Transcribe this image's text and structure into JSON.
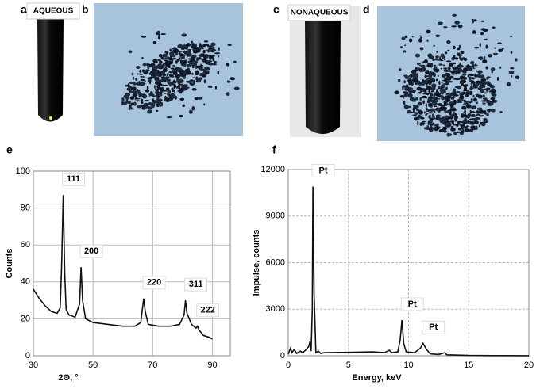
{
  "photos": [
    {
      "panel": "a",
      "tag": "AQUEOUS"
    },
    {
      "panel": "b"
    },
    {
      "panel": "c",
      "tag": "NONAQUEOUS"
    },
    {
      "panel": "d"
    }
  ],
  "chart_data": [
    {
      "type": "line",
      "panel": "e",
      "xlabel": "2Θ, °",
      "ylabel": "Counts",
      "xlim": [
        30,
        96
      ],
      "xticks": [
        30,
        50,
        70,
        90
      ],
      "ylim": [
        0,
        100
      ],
      "yticks": [
        0,
        20,
        40,
        60,
        80,
        100
      ],
      "grid": true,
      "color": "#111111",
      "x": [
        30,
        32,
        34,
        36,
        38,
        39,
        39.5,
        40,
        40.5,
        41,
        42,
        44,
        45.5,
        46,
        46.5,
        47.5,
        50,
        55,
        60,
        64,
        66,
        66.5,
        67,
        67.5,
        68.5,
        72,
        76,
        79,
        80.5,
        81,
        81.5,
        83,
        84.5,
        85,
        85.5,
        87,
        89,
        90
      ],
      "y": [
        36,
        31,
        27,
        24,
        23,
        26,
        50,
        87,
        45,
        25,
        22,
        21,
        28,
        48,
        30,
        20,
        18,
        17,
        16,
        16,
        18,
        25,
        31,
        24,
        17,
        16,
        16,
        17,
        22,
        30,
        23,
        17,
        15,
        16,
        14,
        11,
        10,
        9
      ],
      "annotations": [
        {
          "text": "111",
          "x": 40,
          "y": 87
        },
        {
          "text": "200",
          "x": 46,
          "y": 48
        },
        {
          "text": "220",
          "x": 67,
          "y": 31
        },
        {
          "text": "311",
          "x": 81,
          "y": 30
        },
        {
          "text": "222",
          "x": 85,
          "y": 16
        }
      ]
    },
    {
      "type": "line",
      "panel": "f",
      "xlabel": "Energy, keV",
      "ylabel": "Impulse, counts",
      "xlim": [
        0,
        20
      ],
      "xticks": [
        0,
        5,
        10,
        15,
        20
      ],
      "ylim": [
        0,
        12000
      ],
      "yticks": [
        0,
        3000,
        6000,
        9000,
        12000
      ],
      "grid": true,
      "color": "#111111",
      "x": [
        0,
        0.2,
        0.3,
        0.5,
        0.7,
        1,
        1.2,
        1.5,
        1.7,
        1.8,
        1.9,
        2.0,
        2.05,
        2.15,
        2.3,
        2.5,
        2.7,
        3,
        5,
        7,
        8,
        8.4,
        8.6,
        9.1,
        9.3,
        9.45,
        9.6,
        9.8,
        10.5,
        11,
        11.2,
        11.5,
        11.8,
        12.5,
        13,
        13.2,
        15,
        17,
        20
      ],
      "y": [
        100,
        500,
        200,
        400,
        150,
        300,
        200,
        400,
        600,
        900,
        300,
        3000,
        10900,
        4000,
        200,
        300,
        150,
        200,
        220,
        250,
        200,
        350,
        200,
        250,
        1000,
        2300,
        800,
        250,
        200,
        500,
        800,
        400,
        120,
        80,
        200,
        60,
        20,
        10,
        5
      ],
      "annotations": [
        {
          "text": "Pt",
          "x": 2.05,
          "y": 10900
        },
        {
          "text": "Pt",
          "x": 9.45,
          "y": 2300
        },
        {
          "text": "Pt",
          "x": 11.2,
          "y": 800
        }
      ]
    }
  ]
}
